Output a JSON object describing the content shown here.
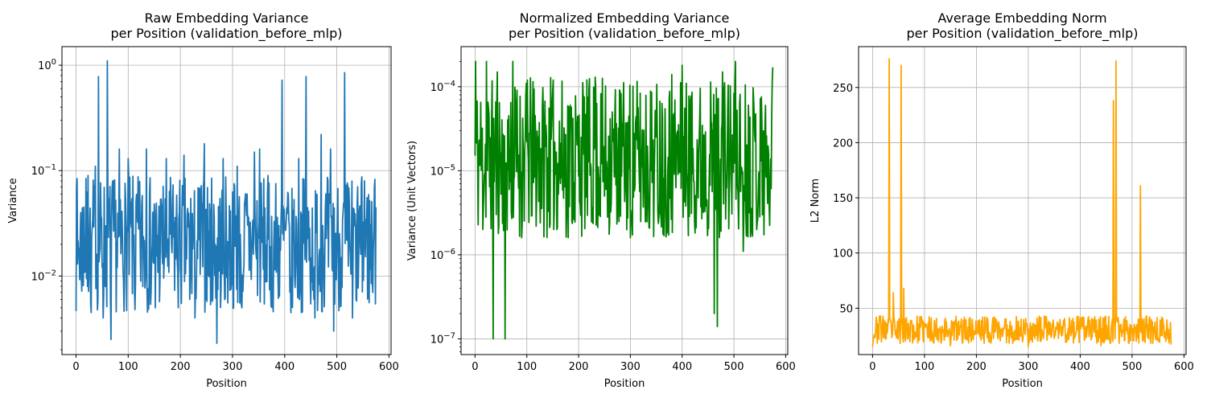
{
  "chart_data": [
    {
      "type": "line",
      "title_lines": [
        "Raw Embedding Variance",
        "per Position (validation_before_mlp)"
      ],
      "xlabel": "Position",
      "ylabel": "Variance",
      "yscale": "log",
      "xlim": [
        -27,
        604
      ],
      "ylim": [
        0.0018,
        1.5
      ],
      "xticks": [
        0,
        100,
        200,
        300,
        400,
        500,
        600
      ],
      "yticks": [
        {
          "value": 0.01,
          "label": "10",
          "exp": "−2"
        },
        {
          "value": 0.1,
          "label": "10",
          "exp": "−1"
        },
        {
          "value": 1,
          "label": "10",
          "exp": "0"
        }
      ],
      "grid": true,
      "color": "#1f77b4",
      "x_range": [
        0,
        575
      ],
      "n_points": 576,
      "y_low": 0.0045,
      "y_high": 0.09,
      "seed": 7,
      "spikes": [
        [
          1,
          0.07
        ],
        [
          3,
          0.013
        ],
        [
          15,
          0.045
        ],
        [
          23,
          0.09
        ],
        [
          29,
          0.0045
        ],
        [
          37,
          0.11
        ],
        [
          43,
          0.78
        ],
        [
          52,
          0.004
        ],
        [
          60,
          1.1
        ],
        [
          67,
          0.0025
        ],
        [
          83,
          0.16
        ],
        [
          93,
          0.009
        ],
        [
          100,
          0.13
        ],
        [
          113,
          0.0048
        ],
        [
          135,
          0.16
        ],
        [
          152,
          0.005
        ],
        [
          173,
          0.13
        ],
        [
          196,
          0.005
        ],
        [
          207,
          0.14
        ],
        [
          218,
          0.006
        ],
        [
          228,
          0.004
        ],
        [
          246,
          0.18
        ],
        [
          262,
          0.006
        ],
        [
          270,
          0.0023
        ],
        [
          282,
          0.13
        ],
        [
          309,
          0.11
        ],
        [
          318,
          0.005
        ],
        [
          342,
          0.15
        ],
        [
          352,
          0.16
        ],
        [
          376,
          0.005
        ],
        [
          395,
          0.72
        ],
        [
          412,
          0.0045
        ],
        [
          427,
          0.13
        ],
        [
          441,
          0.78
        ],
        [
          458,
          0.004
        ],
        [
          470,
          0.22
        ],
        [
          488,
          0.16
        ],
        [
          494,
          0.003
        ],
        [
          515,
          0.85
        ],
        [
          530,
          0.004
        ],
        [
          537,
          0.006
        ],
        [
          553,
          0.08
        ],
        [
          566,
          0.0085
        ],
        [
          572,
          0.07
        ],
        [
          575,
          0.045
        ]
      ]
    },
    {
      "type": "line",
      "title_lines": [
        "Normalized Embedding Variance",
        "per Position (validation_before_mlp)"
      ],
      "xlabel": "Position",
      "ylabel": "Variance (Unit Vectors)",
      "yscale": "log",
      "xlim": [
        -27,
        604
      ],
      "ylim": [
        6.5e-08,
        0.0003
      ],
      "xticks": [
        0,
        100,
        200,
        300,
        400,
        500,
        600
      ],
      "yticks": [
        {
          "value": 1e-07,
          "label": "10",
          "exp": "−7"
        },
        {
          "value": 1e-06,
          "label": "10",
          "exp": "−6"
        },
        {
          "value": 1e-05,
          "label": "10",
          "exp": "−5"
        },
        {
          "value": 0.0001,
          "label": "10",
          "exp": "−4"
        }
      ],
      "grid": true,
      "color": "#008000",
      "x_range": [
        0,
        575
      ],
      "n_points": 576,
      "y_low": 1.6e-06,
      "y_high": 0.00013,
      "seed": 11,
      "spikes": [
        [
          1,
          0.0002
        ],
        [
          5,
          1.4e-05
        ],
        [
          15,
          2e-06
        ],
        [
          22,
          0.0002
        ],
        [
          35,
          1e-07
        ],
        [
          43,
          0.00015
        ],
        [
          58,
          1e-07
        ],
        [
          73,
          0.0002
        ],
        [
          90,
          1.6e-06
        ],
        [
          101,
          0.00012
        ],
        [
          180,
          1.6e-06
        ],
        [
          232,
          0.00013
        ],
        [
          300,
          1.6e-06
        ],
        [
          380,
          0.00014
        ],
        [
          400,
          0.00018
        ],
        [
          462,
          2e-07
        ],
        [
          468,
          1.4e-07
        ],
        [
          478,
          0.00015
        ],
        [
          503,
          0.0002
        ],
        [
          518,
          1.1e-06
        ],
        [
          545,
          2.4e-06
        ],
        [
          567,
          1.6e-05
        ],
        [
          575,
          0.00017
        ]
      ]
    },
    {
      "type": "line",
      "title_lines": [
        "Average Embedding Norm",
        "per Position (validation_before_mlp)"
      ],
      "xlabel": "Position",
      "ylabel": "L2 Norm",
      "yscale": "linear",
      "xlim": [
        -27,
        604
      ],
      "ylim": [
        8,
        287
      ],
      "xticks": [
        0,
        100,
        200,
        300,
        400,
        500,
        600
      ],
      "yticks": [
        {
          "value": 50,
          "label": "50"
        },
        {
          "value": 100,
          "label": "100"
        },
        {
          "value": 150,
          "label": "150"
        },
        {
          "value": 200,
          "label": "200"
        },
        {
          "value": 250,
          "label": "250"
        }
      ],
      "grid": true,
      "color": "#ffa500",
      "x_range": [
        0,
        575
      ],
      "n_points": 576,
      "y_low": 18,
      "y_high": 43,
      "seed": 23,
      "spikes": [
        [
          0,
          15
        ],
        [
          2,
          24
        ],
        [
          12,
          22
        ],
        [
          15,
          43
        ],
        [
          30,
          40
        ],
        [
          32,
          276
        ],
        [
          34,
          40
        ],
        [
          40,
          64
        ],
        [
          45,
          30
        ],
        [
          55,
          270
        ],
        [
          57,
          40
        ],
        [
          60,
          68
        ],
        [
          62,
          40
        ],
        [
          80,
          22
        ],
        [
          150,
          16
        ],
        [
          300,
          15
        ],
        [
          440,
          16
        ],
        [
          462,
          40
        ],
        [
          464,
          238
        ],
        [
          466,
          40
        ],
        [
          469,
          274
        ],
        [
          472,
          40
        ],
        [
          514,
          40
        ],
        [
          516,
          161
        ],
        [
          518,
          40
        ],
        [
          545,
          22
        ],
        [
          565,
          20
        ],
        [
          575,
          17
        ]
      ]
    }
  ]
}
